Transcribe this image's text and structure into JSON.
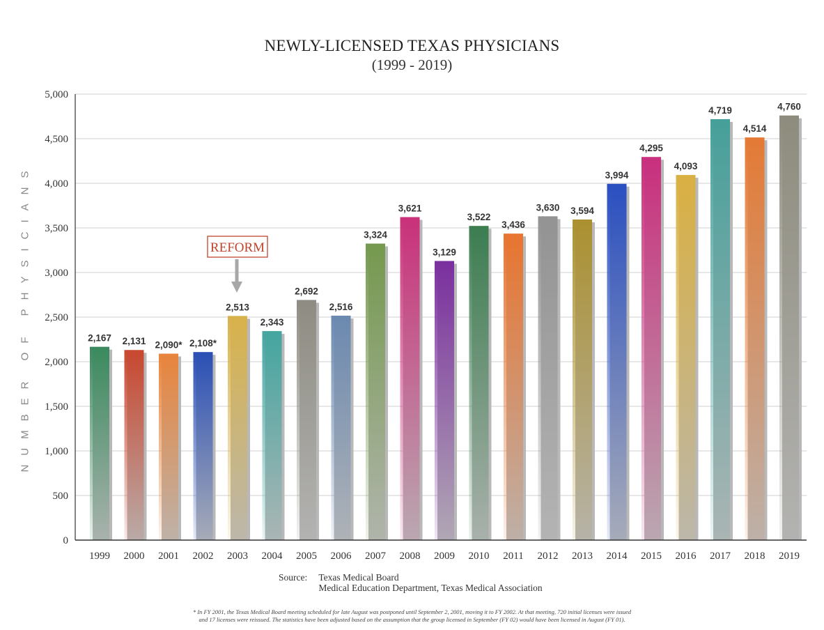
{
  "chart_data": {
    "type": "bar",
    "title": "NEWLY-LICENSED TEXAS PHYSICIANS",
    "subtitle": "(1999 - 2019)",
    "ylabel": "NUMBER OF PHYSICIANS",
    "xlabel": "",
    "ylim": [
      0,
      5000
    ],
    "yticks": [
      0,
      500,
      1000,
      1500,
      2000,
      2500,
      3000,
      3500,
      4000,
      4500,
      5000
    ],
    "ytick_labels": [
      "0",
      "500",
      "1,000",
      "1,500",
      "2,000",
      "2,500",
      "3,000",
      "3,500",
      "4,000",
      "4,500",
      "5,000"
    ],
    "grid": true,
    "categories": [
      "1999",
      "2000",
      "2001",
      "2002",
      "2003",
      "2004",
      "2005",
      "2006",
      "2007",
      "2008",
      "2009",
      "2010",
      "2011",
      "2012",
      "2013",
      "2014",
      "2015",
      "2016",
      "2017",
      "2018",
      "2019"
    ],
    "values": [
      2167,
      2131,
      2090,
      2108,
      2513,
      2343,
      2692,
      2516,
      3324,
      3621,
      3129,
      3522,
      3436,
      3630,
      3594,
      3994,
      4295,
      4093,
      4719,
      4514,
      4760
    ],
    "value_labels": [
      "2,167",
      "2,131",
      "2,090*",
      "2,108*",
      "2,513",
      "2,343",
      "2,692",
      "2,516",
      "3,324",
      "3,621",
      "3,129",
      "3,522",
      "3,436",
      "3,630",
      "3,594",
      "3,994",
      "4,295",
      "4,093",
      "4,719",
      "4,514",
      "4,760"
    ],
    "colors": [
      "#3a8a5e",
      "#c8472f",
      "#e8843c",
      "#2a4fb5",
      "#d8b24a",
      "#44a5a0",
      "#8e8c82",
      "#6b89b0",
      "#75994e",
      "#c9317a",
      "#7a2f9e",
      "#3c7d50",
      "#e8742f",
      "#939393",
      "#ab9030",
      "#2a4fc0",
      "#c92f7d",
      "#d9b042",
      "#469f9a",
      "#e47a35",
      "#8e8c7d"
    ],
    "annotation": {
      "text": "REFORM",
      "category": "2003",
      "color": "#c0442c"
    },
    "source": {
      "label": "Source:",
      "lines": [
        "Texas Medical Board",
        "Medical Education Department, Texas Medical Association"
      ]
    },
    "footnote": {
      "line1": "* In FY 2001, the Texas Medical Board meeting scheduled for late August was postponed until September 2, 2001, moving it to FY 2002. At that meeting, 720 initial licenses were issued",
      "line2": "and 17 licenses were reissued. The statistics have been adjusted based on the assumption that the group licensed in September (FY 02) would have been licensed in August (FY 01)."
    }
  }
}
